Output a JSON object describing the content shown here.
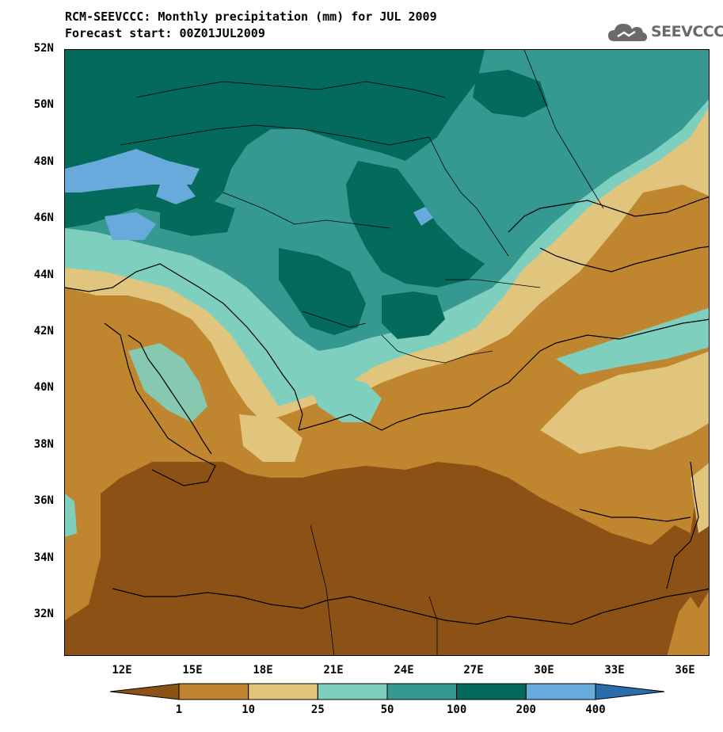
{
  "title_line1": "RCM-SEEVCCC: Monthly precipitation (mm) for JUL 2009",
  "title_line2": "Forecast start: 00Z01JUL2009",
  "logo_text": "SEEVCCC",
  "lat_labels": [
    "52N",
    "50N",
    "48N",
    "46N",
    "44N",
    "42N",
    "40N",
    "38N",
    "36N",
    "34N",
    "32N"
  ],
  "lon_labels": [
    "12E",
    "15E",
    "18E",
    "21E",
    "24E",
    "27E",
    "30E",
    "33E",
    "36E"
  ],
  "colorbar": {
    "thresholds": [
      "1",
      "10",
      "25",
      "50",
      "100",
      "200",
      "400"
    ],
    "colors": [
      "#8c5114",
      "#c0862f",
      "#e2c57c",
      "#7fcfbf",
      "#369991",
      "#046a5c",
      "#69aadc",
      "#2b6cad"
    ]
  },
  "colors": {
    "lt1": "#8c5114",
    "c1_10": "#c0862f",
    "c10_25": "#e2c57c",
    "c25_50": "#7fcfbf",
    "c50_100": "#369991",
    "c100_200": "#046a5c",
    "c200_400": "#69aadc"
  }
}
